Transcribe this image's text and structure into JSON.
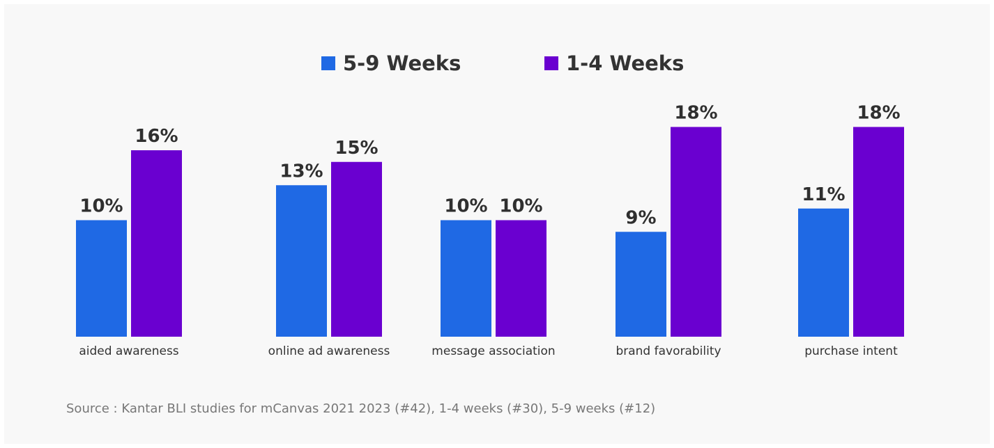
{
  "chart_data": {
    "type": "bar",
    "categories": [
      "aided awareness",
      "online ad awareness",
      "message association",
      "brand favorability",
      "purchase intent"
    ],
    "series": [
      {
        "name": "5-9 Weeks",
        "color": "#1f69e4",
        "values": [
          10,
          13,
          10,
          9,
          11
        ],
        "labels": [
          "10%",
          "13%",
          "10%",
          "9%",
          "11%"
        ]
      },
      {
        "name": "1-4 Weeks",
        "color": "#6a00d0",
        "values": [
          16,
          15,
          10,
          18,
          18
        ],
        "labels": [
          "16%",
          "15%",
          "10%",
          "18%",
          "18%"
        ]
      }
    ],
    "unit": "%",
    "ylim": [
      0,
      18
    ],
    "legend_position": "top-center",
    "grid": false
  },
  "source": "Source : Kantar BLI studies for mCanvas 2021 2023 (#42), 1-4 weeks (#30), 5-9 weeks (#12)"
}
